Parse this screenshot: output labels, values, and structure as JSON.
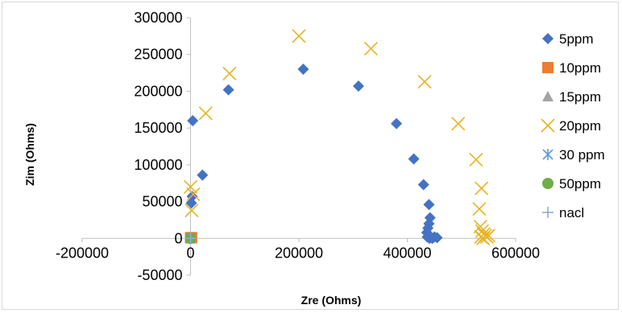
{
  "chart_data": {
    "type": "scatter",
    "title": "",
    "xlabel": "Zre (Ohms)",
    "ylabel": "Zim (Ohms)",
    "xlim": [
      -200000,
      600000
    ],
    "ylim": [
      -50000,
      300000
    ],
    "x_ticks": [
      -200000,
      0,
      200000,
      400000,
      600000
    ],
    "y_ticks": [
      -50000,
      0,
      50000,
      100000,
      150000,
      200000,
      250000,
      300000
    ],
    "x_tick_labels": [
      "-200000",
      "0",
      "200000",
      "400000",
      "600000"
    ],
    "y_tick_labels": [
      "-50000",
      "0",
      "50000",
      "100000",
      "150000",
      "200000",
      "250000",
      "300000"
    ],
    "grid": false,
    "legend_position": "right",
    "series": [
      {
        "name": "5ppm",
        "marker": "diamond",
        "color": "#4472C4",
        "points": [
          [
            1500,
            48000
          ],
          [
            3000,
            57000
          ],
          [
            4000,
            160000
          ],
          [
            22000,
            86000
          ],
          [
            70000,
            202000
          ],
          [
            208000,
            230000
          ],
          [
            310000,
            207000
          ],
          [
            380000,
            156000
          ],
          [
            412000,
            108000
          ],
          [
            430000,
            73000
          ],
          [
            440000,
            46000
          ],
          [
            442000,
            28000
          ],
          [
            440000,
            20000
          ],
          [
            438000,
            14000
          ],
          [
            436000,
            8000
          ],
          [
            437000,
            2000
          ],
          [
            441000,
            0
          ],
          [
            446000,
            0
          ],
          [
            450000,
            2000
          ],
          [
            455000,
            1000
          ]
        ]
      },
      {
        "name": "10ppm",
        "marker": "square",
        "color": "#ED7D31",
        "points": [
          [
            0,
            1000
          ],
          [
            2000,
            1000
          ]
        ]
      },
      {
        "name": "15ppm",
        "marker": "triangle",
        "color": "#A5A5A5",
        "points": [
          [
            0,
            500
          ]
        ]
      },
      {
        "name": "20ppm",
        "marker": "x",
        "color": "#E6B422",
        "points": [
          [
            0,
            70000
          ],
          [
            2000,
            38000
          ],
          [
            5000,
            60000
          ],
          [
            28000,
            170000
          ],
          [
            72000,
            224000
          ],
          [
            200000,
            275000
          ],
          [
            333000,
            258000
          ],
          [
            432000,
            213000
          ],
          [
            494000,
            156000
          ],
          [
            527000,
            107000
          ],
          [
            537000,
            68000
          ],
          [
            533000,
            40000
          ],
          [
            535000,
            16000
          ],
          [
            538000,
            10000
          ],
          [
            541000,
            6000
          ],
          [
            544000,
            4000
          ],
          [
            547000,
            2000
          ],
          [
            550000,
            4000
          ],
          [
            536000,
            2000
          ],
          [
            540000,
            0
          ]
        ]
      },
      {
        "name": "30 ppm",
        "marker": "asterisk",
        "color": "#5B9BD5",
        "points": [
          [
            0,
            0
          ]
        ]
      },
      {
        "name": "50ppm",
        "marker": "circle",
        "color": "#70AD47",
        "points": [
          [
            0,
            0
          ]
        ]
      },
      {
        "name": "nacl",
        "marker": "plus",
        "color": "#8FAADC",
        "points": [
          [
            0,
            0
          ]
        ]
      }
    ]
  }
}
